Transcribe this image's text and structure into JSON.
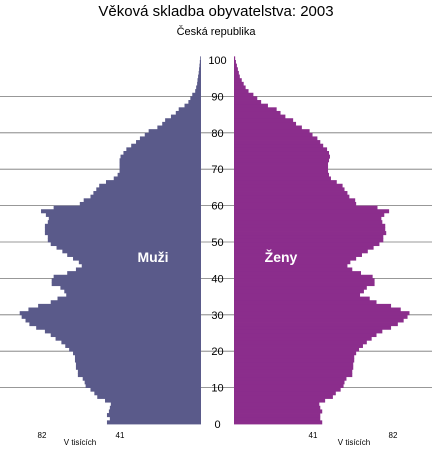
{
  "title": "Věková skladba obyvatelstva: 2003",
  "subtitle": "Česká republika",
  "chart_data": {
    "type": "bar",
    "orientation": "population-pyramid",
    "y_ticks": [
      0,
      10,
      20,
      30,
      40,
      50,
      60,
      70,
      80,
      90,
      100
    ],
    "ylim": [
      0,
      100
    ],
    "x_ticks": [
      82,
      41
    ],
    "x_unit_label": "V tisících",
    "grid": "horizontal",
    "labels": {
      "male": "Muži",
      "female": "Ženy"
    },
    "colors": {
      "male": "#5a5a8a",
      "female": "#8b2d8c",
      "grid": "#777777"
    },
    "ages": [
      0,
      1,
      2,
      3,
      4,
      5,
      6,
      7,
      8,
      9,
      10,
      11,
      12,
      13,
      14,
      15,
      16,
      17,
      18,
      19,
      20,
      21,
      22,
      23,
      24,
      25,
      26,
      27,
      28,
      29,
      30,
      31,
      32,
      33,
      34,
      35,
      36,
      37,
      38,
      39,
      40,
      41,
      42,
      43,
      44,
      45,
      46,
      47,
      48,
      49,
      50,
      51,
      52,
      53,
      54,
      55,
      56,
      57,
      58,
      59,
      60,
      61,
      62,
      63,
      64,
      65,
      66,
      67,
      68,
      69,
      70,
      71,
      72,
      73,
      74,
      75,
      76,
      77,
      78,
      79,
      80,
      81,
      82,
      83,
      84,
      85,
      86,
      87,
      88,
      89,
      90,
      91,
      92,
      93,
      94,
      95,
      96,
      97,
      98,
      99,
      100
    ],
    "series": [
      {
        "name": "Muži",
        "values": [
          48.5,
          47.0,
          48.5,
          47.5,
          47.0,
          46.5,
          49.5,
          53.5,
          55.0,
          57.0,
          59.5,
          60.0,
          61.0,
          63.5,
          63.5,
          64.5,
          64.5,
          65.0,
          65.0,
          66.0,
          68.0,
          70.0,
          72.0,
          75.0,
          77.5,
          80.5,
          85.0,
          88.5,
          90.5,
          92.5,
          93.5,
          89.0,
          84.0,
          77.5,
          74.0,
          69.5,
          70.5,
          72.5,
          77.0,
          77.0,
          76.0,
          69.0,
          64.5,
          61.5,
          63.0,
          66.0,
          69.0,
          71.5,
          74.5,
          77.5,
          79.0,
          79.0,
          80.5,
          80.5,
          80.5,
          79.0,
          78.5,
          80.0,
          82.5,
          76.0,
          62.5,
          60.5,
          57.0,
          55.5,
          54.0,
          52.5,
          49.0,
          45.0,
          43.0,
          42.0,
          42.0,
          42.0,
          42.0,
          41.5,
          40.0,
          38.5,
          36.0,
          33.5,
          31.5,
          29.0,
          27.0,
          22.5,
          20.0,
          18.5,
          15.5,
          13.0,
          11.5,
          8.5,
          6.5,
          5.5,
          4.5,
          3.0,
          2.5,
          2.0,
          1.8,
          1.5,
          1.2,
          1.0,
          0.8,
          0.6,
          0.4
        ]
      },
      {
        "name": "Ženy",
        "values": [
          45.5,
          44.5,
          44.5,
          45.5,
          44.5,
          44.0,
          47.0,
          51.0,
          52.5,
          55.0,
          56.5,
          57.0,
          58.0,
          61.0,
          61.0,
          61.5,
          61.5,
          62.0,
          62.0,
          63.0,
          64.5,
          66.5,
          68.5,
          71.0,
          73.5,
          76.5,
          81.0,
          84.5,
          87.5,
          89.5,
          90.5,
          86.0,
          81.0,
          73.5,
          70.0,
          65.0,
          67.0,
          68.5,
          72.5,
          72.5,
          71.5,
          65.5,
          61.0,
          58.5,
          60.0,
          63.0,
          66.0,
          69.0,
          72.0,
          75.0,
          77.0,
          77.0,
          78.5,
          78.0,
          78.0,
          76.5,
          76.0,
          77.5,
          80.0,
          74.0,
          63.0,
          62.5,
          59.5,
          58.5,
          57.0,
          56.0,
          53.0,
          50.0,
          49.0,
          48.5,
          48.5,
          48.5,
          49.0,
          49.5,
          49.0,
          48.0,
          46.0,
          44.5,
          43.0,
          40.5,
          39.0,
          35.0,
          32.0,
          30.5,
          26.5,
          24.0,
          22.0,
          17.5,
          14.0,
          12.0,
          10.0,
          7.5,
          6.0,
          5.0,
          4.0,
          3.0,
          2.5,
          2.0,
          1.5,
          1.0,
          0.6
        ]
      }
    ]
  }
}
